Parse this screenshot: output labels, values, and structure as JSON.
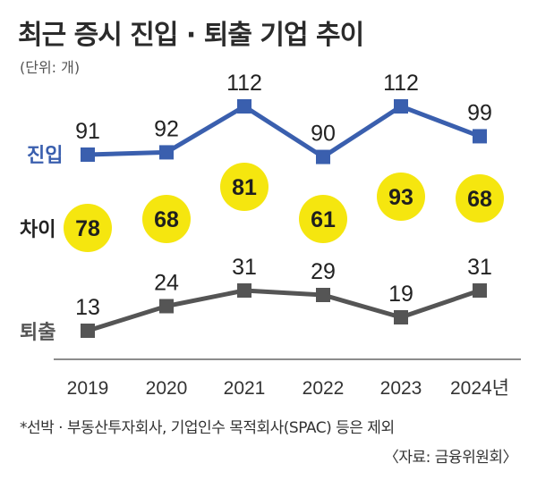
{
  "title": "최근 증시 진입 · 퇴출 기업 추이",
  "unit": "(단위: 개)",
  "footnote": "*선박 · 부동산투자회사, 기업인수 목적회사(SPAC) 등은 제외",
  "source": "〈자료: 금융위원회〉",
  "chart_data": {
    "type": "line",
    "categories": [
      "2019",
      "2020",
      "2021",
      "2022",
      "2023",
      "2024년"
    ],
    "series": [
      {
        "name": "진입",
        "color": "#3a5fae",
        "values": [
          91,
          92,
          112,
          90,
          112,
          99
        ]
      },
      {
        "name": "퇴출",
        "color": "#555555",
        "values": [
          13,
          24,
          31,
          29,
          19,
          31
        ]
      }
    ],
    "difference": {
      "name": "차이",
      "color": "#f5e60f",
      "values": [
        78,
        68,
        81,
        61,
        93,
        68
      ]
    }
  }
}
